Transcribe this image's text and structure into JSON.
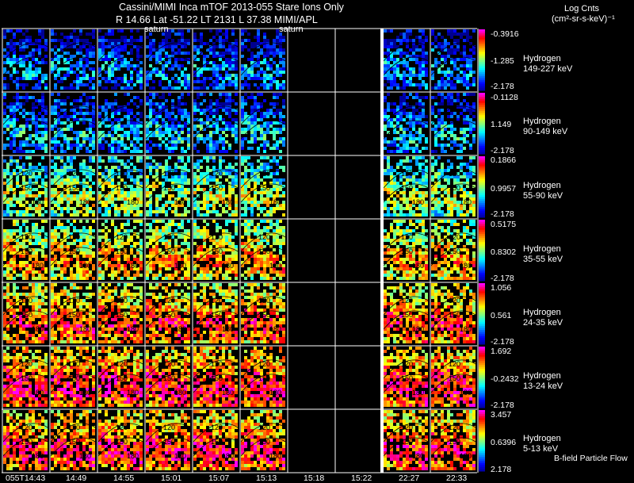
{
  "header": {
    "title_line1": "Cassini/MIMI Inca mTOF  2013-055   Stare   Ions Only",
    "title_line2": "R         14.66 Lat -51.22 LT 2131 L       37.38  MIMI/APL",
    "saturn_label_a": "saturn",
    "saturn_label_b": "saturn",
    "units_title": "Log Cnts",
    "units_line": "(cm²-sr-s-keV)⁻¹",
    "footer_note": "B-field Particle Flow"
  },
  "time_labels": [
    "055T14:43",
    "14:49",
    "14:55",
    "15:01",
    "15:07",
    "15:13",
    "15:18",
    "15:22",
    "22:27",
    "22:33"
  ],
  "contour_labels": [
    "120",
    "150",
    "180"
  ],
  "colors": {
    "background": "#000000",
    "panel_border": "#ffffff",
    "colormap": [
      "#00008f",
      "#0000ff",
      "#0080ff",
      "#00ffff",
      "#80ff80",
      "#ffff00",
      "#ff8000",
      "#ff0000",
      "#ff00ff"
    ]
  },
  "chart_data": {
    "type": "heatmap",
    "title": "Cassini/MIMI Inca mTOF  2013-055   Stare   Ions Only",
    "species": "Hydrogen",
    "colorbar_units": "Log Cnts (cm²-sr-s-keV)⁻¹",
    "columns": [
      "055T14:43",
      "14:49",
      "14:55",
      "15:01",
      "15:07",
      "15:13",
      "15:18",
      "15:22",
      "22:27",
      "22:33"
    ],
    "empty_columns": [
      "15:18",
      "15:22"
    ],
    "bands": [
      {
        "name": "Hydrogen",
        "energy": "149-227 keV",
        "cmax": -0.3916,
        "cmid": -1.285,
        "cmin": -2.178,
        "level": 0.15
      },
      {
        "name": "Hydrogen",
        "energy": "90-149 keV",
        "cmax": -0.1128,
        "cmid": 1.149,
        "cmin": -2.178,
        "level": 0.22
      },
      {
        "name": "Hydrogen",
        "energy": "55-90 keV",
        "cmax": 0.1866,
        "cmid": 0.9957,
        "cmin": -2.178,
        "level": 0.45
      },
      {
        "name": "Hydrogen",
        "energy": "35-55 keV",
        "cmax": 0.5175,
        "cmid": 0.8302,
        "cmin": -2.178,
        "level": 0.6
      },
      {
        "name": "Hydrogen",
        "energy": "24-35 keV",
        "cmax": 1.056,
        "cmid": 0.561,
        "cmin": -2.178,
        "level": 0.7
      },
      {
        "name": "Hydrogen",
        "energy": "13-24 keV",
        "cmax": 1.692,
        "cmid": -0.2432,
        "cmin": -2.178,
        "level": 0.76
      },
      {
        "name": "Hydrogen",
        "energy": "5-13 keV",
        "cmax": 3.457,
        "cmid": 0.6396,
        "cmin": 2.178,
        "level": 0.74
      }
    ]
  }
}
